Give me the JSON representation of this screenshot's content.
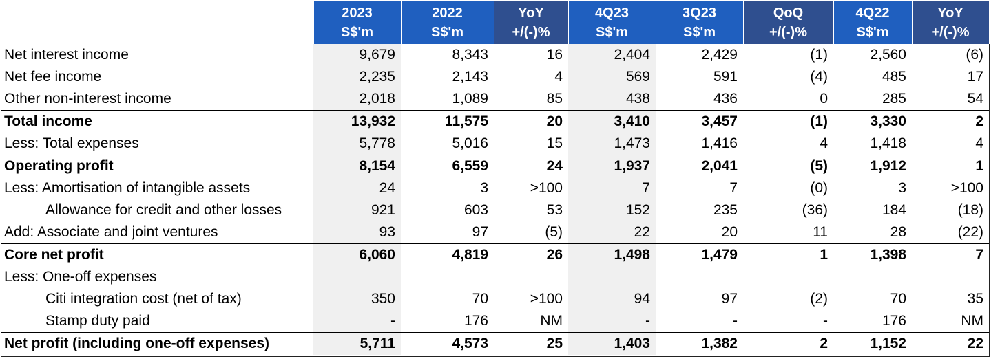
{
  "columns": [
    {
      "line1": "2023",
      "line2": "S$'m",
      "style": "blue"
    },
    {
      "line1": "2022",
      "line2": "S$'m",
      "style": "blue"
    },
    {
      "line1": "YoY",
      "line2": "+/(-)%",
      "style": "navy"
    },
    {
      "line1": "4Q23",
      "line2": "S$'m",
      "style": "blue"
    },
    {
      "line1": "3Q23",
      "line2": "S$'m",
      "style": "blue"
    },
    {
      "line1": "QoQ",
      "line2": "+/(-)%",
      "style": "navy"
    },
    {
      "line1": "4Q22",
      "line2": "S$'m",
      "style": "blue"
    },
    {
      "line1": "YoY",
      "line2": "+/(-)%",
      "style": "navy"
    }
  ],
  "rows": [
    {
      "label": "Net interest income",
      "values": [
        "9,679",
        "8,343",
        "16",
        "2,404",
        "2,429",
        "(1)",
        "2,560",
        "(6)"
      ],
      "bold": false,
      "indent": false,
      "rule": false
    },
    {
      "label": "Net fee income",
      "values": [
        "2,235",
        "2,143",
        "4",
        "569",
        "591",
        "(4)",
        "485",
        "17"
      ],
      "bold": false,
      "indent": false,
      "rule": false
    },
    {
      "label": "Other non-interest income",
      "values": [
        "2,018",
        "1,089",
        "85",
        "438",
        "436",
        "0",
        "285",
        "54"
      ],
      "bold": false,
      "indent": false,
      "rule": false
    },
    {
      "label": "Total income",
      "values": [
        "13,932",
        "11,575",
        "20",
        "3,410",
        "3,457",
        "(1)",
        "3,330",
        "2"
      ],
      "bold": true,
      "indent": false,
      "rule": true
    },
    {
      "label": "Less: Total expenses",
      "values": [
        "5,778",
        "5,016",
        "15",
        "1,473",
        "1,416",
        "4",
        "1,418",
        "4"
      ],
      "bold": false,
      "indent": false,
      "rule": false
    },
    {
      "label": "Operating profit",
      "values": [
        "8,154",
        "6,559",
        "24",
        "1,937",
        "2,041",
        "(5)",
        "1,912",
        "1"
      ],
      "bold": true,
      "indent": false,
      "rule": true
    },
    {
      "label": "Less: Amortisation of intangible assets",
      "values": [
        "24",
        "3",
        ">100",
        "7",
        "7",
        "(0)",
        "3",
        ">100"
      ],
      "bold": false,
      "indent": false,
      "rule": false
    },
    {
      "label": "Allowance for credit and other losses",
      "values": [
        "921",
        "603",
        "53",
        "152",
        "235",
        "(36)",
        "184",
        "(18)"
      ],
      "bold": false,
      "indent": true,
      "rule": false
    },
    {
      "label": "Add:  Associate and joint ventures",
      "values": [
        "93",
        "97",
        "(5)",
        "22",
        "20",
        "11",
        "28",
        "(22)"
      ],
      "bold": false,
      "indent": false,
      "rule": false
    },
    {
      "label": "Core net profit",
      "values": [
        "6,060",
        "4,819",
        "26",
        "1,498",
        "1,479",
        "1",
        "1,398",
        "7"
      ],
      "bold": true,
      "indent": false,
      "rule": true
    },
    {
      "label": "Less: One-off expenses",
      "values": [
        "",
        "",
        "",
        "",
        "",
        "",
        "",
        ""
      ],
      "bold": false,
      "indent": false,
      "rule": false
    },
    {
      "label": "Citi integration cost (net of tax)",
      "values": [
        "350",
        "70",
        ">100",
        "94",
        "97",
        "(2)",
        "70",
        "35"
      ],
      "bold": false,
      "indent": true,
      "rule": false
    },
    {
      "label": "Stamp duty paid",
      "values": [
        "-",
        "176",
        "NM",
        "-",
        "-",
        "-",
        "176",
        "NM"
      ],
      "bold": false,
      "indent": true,
      "rule": false
    },
    {
      "label": "Net profit (including one-off expenses)",
      "values": [
        "5,711",
        "4,573",
        "25",
        "1,403",
        "1,382",
        "2",
        "1,152",
        "22"
      ],
      "bold": true,
      "indent": false,
      "rule": true
    }
  ]
}
